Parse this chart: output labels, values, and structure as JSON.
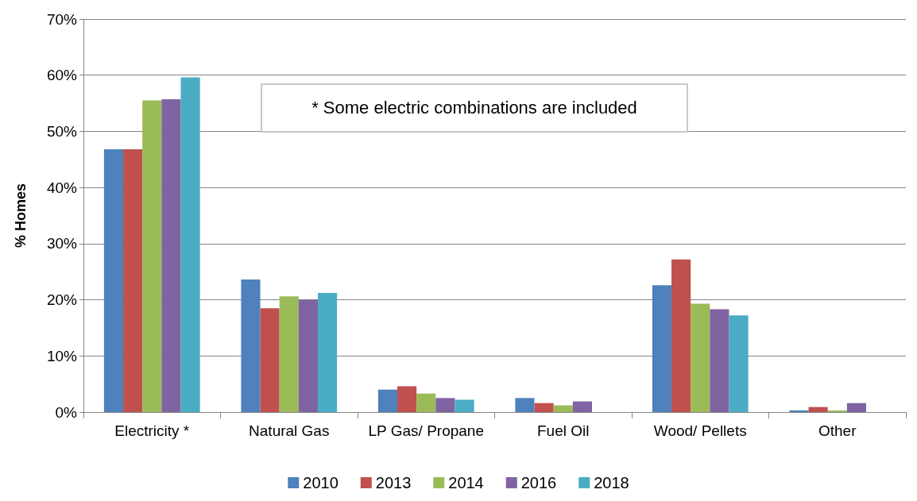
{
  "chart_data": {
    "type": "bar",
    "ylabel": "% Homes",
    "categories": [
      "Electricity *",
      "Natural Gas",
      "LP Gas/ Propane",
      "Fuel Oil",
      "Wood/ Pellets",
      "Other"
    ],
    "series": [
      {
        "name": "2010",
        "color": "#4f81bd",
        "values": [
          46.8,
          23.6,
          4.0,
          2.5,
          22.6,
          0.3
        ]
      },
      {
        "name": "2013",
        "color": "#c0504d",
        "values": [
          46.8,
          18.5,
          4.6,
          1.6,
          27.2,
          0.9
        ]
      },
      {
        "name": "2014",
        "color": "#9bbb59",
        "values": [
          55.5,
          20.6,
          3.3,
          1.2,
          19.3,
          0.3
        ]
      },
      {
        "name": "2016",
        "color": "#8064a2",
        "values": [
          55.7,
          20.0,
          2.5,
          1.9,
          18.3,
          1.6
        ]
      },
      {
        "name": "2018",
        "color": "#4bacc6",
        "values": [
          59.6,
          21.2,
          2.2,
          null,
          17.2,
          null
        ]
      }
    ],
    "ylim": [
      0,
      70
    ],
    "yticks": [
      {
        "value": 0,
        "label": "0%"
      },
      {
        "value": 10,
        "label": "10%"
      },
      {
        "value": 20,
        "label": "20%"
      },
      {
        "value": 30,
        "label": "30%"
      },
      {
        "value": 40,
        "label": "40%"
      },
      {
        "value": 50,
        "label": "50%"
      },
      {
        "value": 60,
        "label": "60%"
      },
      {
        "value": 70,
        "label": "70%"
      }
    ],
    "grid": "y",
    "legend": "bottom",
    "annotations": [
      "* Some electric combinations are included"
    ]
  }
}
